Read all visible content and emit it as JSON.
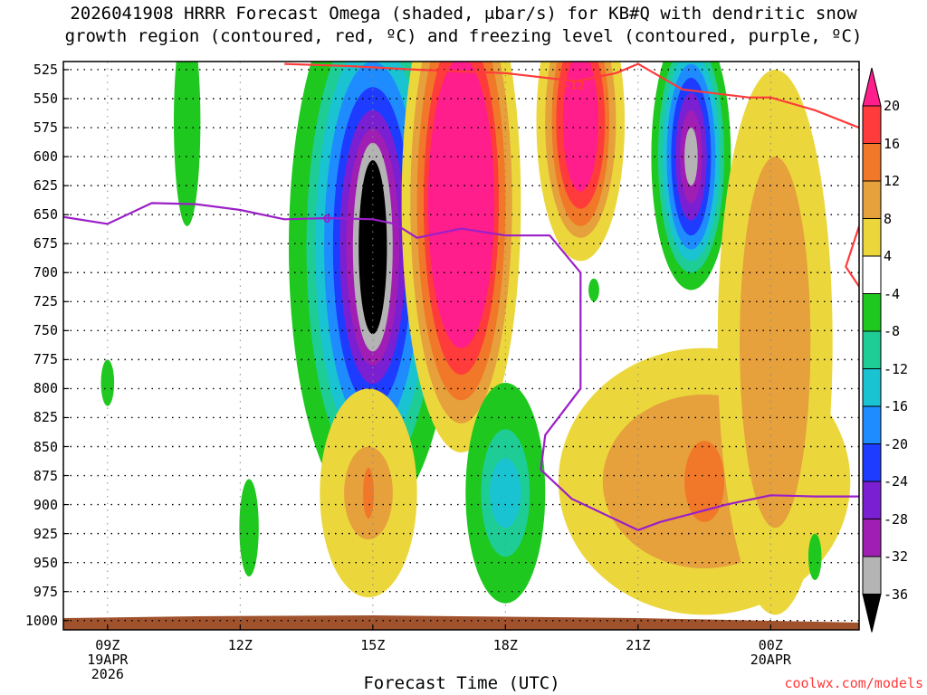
{
  "chart_data": {
    "type": "heatmap",
    "title_line1": "2026041908 HRRR Forecast Omega (shaded, μbar/s) for KB#Q with dendritic snow",
    "title_line2": "growth region (contoured, red, ºC) and freezing level (contoured, purple, ºC)",
    "xlabel": "Forecast Time (UTC)",
    "credit": "coolwx.com/models",
    "pressure_ticks": [
      "525",
      "550",
      "575",
      "600",
      "625",
      "650",
      "675",
      "700",
      "725",
      "750",
      "775",
      "800",
      "825",
      "850",
      "875",
      "900",
      "925",
      "950",
      "975",
      "1000"
    ],
    "x_range_hours": [
      8.0,
      26.0
    ],
    "time_ticks": [
      {
        "hour": 9,
        "label": "09Z",
        "date": "19APR",
        "year": "2026"
      },
      {
        "hour": 12,
        "label": "12Z",
        "date": "",
        "year": ""
      },
      {
        "hour": 15,
        "label": "15Z",
        "date": "",
        "year": ""
      },
      {
        "hour": 18,
        "label": "18Z",
        "date": "",
        "year": ""
      },
      {
        "hour": 21,
        "label": "21Z",
        "date": "",
        "year": ""
      },
      {
        "hour": 24,
        "label": "00Z",
        "date": "20APR",
        "year": ""
      }
    ],
    "colorbar": {
      "ticks": [
        "20",
        "16",
        "12",
        "8",
        "4",
        "-4",
        "-8",
        "-12",
        "-16",
        "-20",
        "-24",
        "-28",
        "-32",
        "-36"
      ],
      "colors": [
        "#ff1e8c",
        "#ff3b3b",
        "#f07828",
        "#e6a03c",
        "#ebd73c",
        "#ffffff",
        "#1ec81e",
        "#1ecc96",
        "#19c3d2",
        "#1e8cff",
        "#1e3cff",
        "#7b1fd2",
        "#a01eb4",
        "#b4b4b4",
        "#000000"
      ],
      "color_meaning": [
        "20+",
        "16 to 20",
        "12 to 16",
        "8 to 12",
        "4 to 8",
        "-4 to 4",
        "-8 to -4",
        "-12 to -8",
        "-16 to -12",
        "-20 to -16",
        "-24 to -20",
        "-28 to -24",
        "-32 to -28",
        "-36 to -32",
        "< -36"
      ]
    },
    "shaded_regions": [
      {
        "name": "upward-motion-core",
        "center_hour": 15.0,
        "center_p": 678,
        "omega_min": -40,
        "hour_half_widths": [
          1.9,
          1.5,
          1.3,
          1.1,
          0.9,
          0.75,
          0.6,
          0.45,
          0.32
        ],
        "p_half_heights": [
          235,
          200,
          180,
          160,
          138,
          118,
          102,
          90,
          75
        ],
        "levels": [
          -4,
          -8,
          -12,
          -16,
          -20,
          -24,
          -28,
          -32,
          -36
        ]
      },
      {
        "name": "downward-motion-main",
        "center_hour": 17.0,
        "center_p": 640,
        "omega_max": 24,
        "hour_half_widths": [
          1.35,
          1.15,
          1.0,
          0.85,
          0.75
        ],
        "p_half_heights": [
          215,
          190,
          170,
          148,
          125
        ],
        "levels": [
          4,
          8,
          12,
          16,
          20
        ]
      },
      {
        "name": "downward-motion-upper",
        "center_hour": 19.7,
        "center_p": 570,
        "omega_max": 22,
        "hour_half_widths": [
          1.0,
          0.8,
          0.65,
          0.55,
          0.4
        ],
        "p_half_heights": [
          120,
          100,
          90,
          75,
          60
        ],
        "levels": [
          4,
          8,
          12,
          16,
          20
        ]
      },
      {
        "name": "upward-motion-secondary",
        "center_hour": 22.2,
        "center_p": 600,
        "omega_min": -33,
        "hour_half_widths": [
          0.9,
          0.75,
          0.65,
          0.55,
          0.45,
          0.35,
          0.25,
          0.15
        ],
        "p_half_heights": [
          115,
          100,
          90,
          80,
          68,
          55,
          40,
          25
        ],
        "levels": [
          -4,
          -8,
          -12,
          -16,
          -20,
          -24,
          -28,
          -32
        ]
      },
      {
        "name": "downward-motion-lower",
        "center_hour": 22.5,
        "center_p": 880,
        "omega_max": 15,
        "hour_half_widths": [
          3.3,
          2.3,
          0.45
        ],
        "p_half_heights": [
          115,
          75,
          35
        ],
        "levels": [
          4,
          8,
          12
        ]
      },
      {
        "name": "downward-motion-right",
        "center_hour": 24.1,
        "center_p": 760,
        "omega_max": 11,
        "hour_half_widths": [
          1.3,
          0.8
        ],
        "p_half_heights": [
          235,
          160
        ],
        "levels": [
          4,
          8
        ]
      },
      {
        "name": "downward-motion-small",
        "center_hour": 14.9,
        "center_p": 890,
        "omega_max": 14,
        "hour_half_widths": [
          1.1,
          0.55,
          0.12
        ],
        "p_half_heights": [
          90,
          40,
          22
        ],
        "levels": [
          4,
          8,
          12
        ]
      },
      {
        "name": "upward-motion-low",
        "center_hour": 18.0,
        "center_p": 890,
        "omega_min": -13,
        "hour_half_widths": [
          0.9,
          0.55,
          0.35
        ],
        "p_half_heights": [
          95,
          55,
          30
        ],
        "levels": [
          -4,
          -8,
          -12
        ]
      },
      {
        "name": "upward-motion-early",
        "center_hour": 10.8,
        "center_p": 570,
        "omega_min": -6,
        "hour_half_widths": [
          0.3
        ],
        "p_half_heights": [
          90
        ],
        "levels": [
          -4
        ]
      },
      {
        "name": "upward-motion-small-1",
        "center_hour": 9.0,
        "center_p": 795,
        "omega_min": -5,
        "hour_half_widths": [
          0.15
        ],
        "p_half_heights": [
          20
        ],
        "levels": [
          -4
        ]
      },
      {
        "name": "upward-motion-small-2",
        "center_hour": 12.2,
        "center_p": 920,
        "omega_min": -6,
        "hour_half_widths": [
          0.22
        ],
        "p_half_heights": [
          42
        ],
        "levels": [
          -4
        ]
      },
      {
        "name": "upward-motion-small-3",
        "center_hour": 25.0,
        "center_p": 945,
        "omega_min": -6,
        "hour_half_widths": [
          0.15
        ],
        "p_half_heights": [
          20
        ],
        "levels": [
          -4
        ]
      },
      {
        "name": "upward-motion-small-4",
        "center_hour": 20.0,
        "center_p": 715,
        "omega_min": -6,
        "hour_half_widths": [
          0.12
        ],
        "p_half_heights": [
          10
        ],
        "levels": [
          -4
        ]
      }
    ],
    "contours": [
      {
        "name": "dendritic-growth-minus-12",
        "color": "#ff3b3b",
        "label": "-12",
        "points": [
          [
            13.0,
            520
          ],
          [
            14.5,
            522
          ],
          [
            16.0,
            525
          ],
          [
            18.0,
            528
          ],
          [
            19.6,
            535
          ],
          [
            20.5,
            528
          ],
          [
            21.0,
            520
          ],
          [
            22.0,
            542
          ],
          [
            23.5,
            549
          ],
          [
            24.0,
            549
          ],
          [
            25.0,
            560
          ],
          [
            26.0,
            575
          ]
        ]
      },
      {
        "name": "dendritic-growth-right-edge",
        "color": "#ff3b3b",
        "label": "",
        "points": [
          [
            26.0,
            660
          ],
          [
            25.7,
            695
          ],
          [
            26.0,
            712
          ]
        ]
      },
      {
        "name": "freezing-level-0",
        "color": "#9b1fc8",
        "label": "0",
        "points": [
          [
            8.0,
            652
          ],
          [
            9.0,
            658
          ],
          [
            10.0,
            640
          ],
          [
            11.0,
            641
          ],
          [
            12.0,
            646
          ],
          [
            13.0,
            654
          ],
          [
            14.0,
            653
          ],
          [
            15.0,
            654
          ],
          [
            15.5,
            658
          ],
          [
            16.0,
            670
          ],
          [
            17.0,
            662
          ],
          [
            18.0,
            668
          ],
          [
            19.0,
            668
          ],
          [
            19.7,
            700
          ],
          [
            19.7,
            800
          ],
          [
            18.9,
            840
          ],
          [
            18.8,
            870
          ],
          [
            19.5,
            895
          ],
          [
            21.0,
            922
          ],
          [
            21.5,
            915
          ],
          [
            22.5,
            905
          ],
          [
            23.0,
            900
          ],
          [
            24.0,
            892
          ],
          [
            25.0,
            893
          ],
          [
            26.0,
            893
          ]
        ]
      }
    ]
  }
}
